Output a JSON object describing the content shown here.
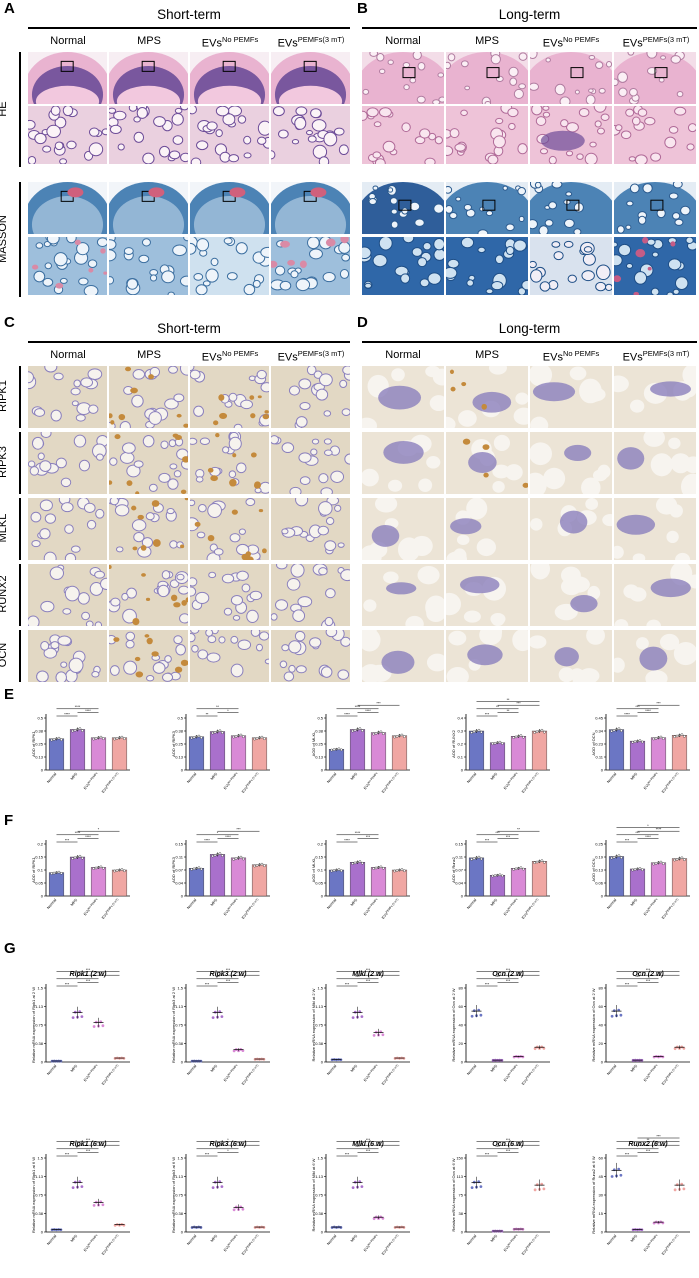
{
  "panels": {
    "A": {
      "letter": "A",
      "title": "Short-term",
      "columns": [
        "Normal",
        "MPS",
        "EVs",
        "EVs"
      ],
      "col_sup": [
        "",
        "",
        "No PEMFs",
        "PEMFs(3 mT)"
      ],
      "rows": [
        "HE",
        "MASSON"
      ]
    },
    "B": {
      "letter": "B",
      "title": "Long-term",
      "columns": [
        "Normal",
        "MPS",
        "EVs",
        "EVs"
      ],
      "col_sup": [
        "",
        "",
        "No PEMFs",
        "PEMFs(3 mT)"
      ]
    },
    "C": {
      "letter": "C",
      "title": "Short-term",
      "columns": [
        "Normal",
        "MPS",
        "EVs",
        "EVs"
      ],
      "col_sup": [
        "",
        "",
        "No PEMFs",
        "PEMFs(3 mT)"
      ],
      "rows": [
        "RIPK1",
        "RIPK3",
        "MLKL",
        "RUNX2",
        "OCN"
      ]
    },
    "D": {
      "letter": "D",
      "title": "Long-term",
      "columns": [
        "Normal",
        "MPS",
        "EVs",
        "EVs"
      ],
      "col_sup": [
        "",
        "",
        "No PEMFs",
        "PEMFs(3 mT)"
      ]
    },
    "E": {
      "letter": "E"
    },
    "F": {
      "letter": "F"
    },
    "G": {
      "letter": "G"
    }
  },
  "colors": {
    "normal": "#6b76c4",
    "mps": "#a970cc",
    "evs_no": "#d98ad6",
    "evs_pemf": "#f0a7a3",
    "he_pink": "#e9b3d0",
    "he_purple": "#6d4c98",
    "masson_blue": "#4c83b5",
    "ihc_bg": "#e2d8c4",
    "ihc_purple": "#8b80bd",
    "ihc_brown": "#c48a3c"
  },
  "chart_data": [
    {
      "panel": "E",
      "type": "bar",
      "ylabel": "AOD of RIPK1",
      "categories": [
        "Normal",
        "MPS",
        "EVsNo PEMFs",
        "EVsPEMFs (3 mT)"
      ],
      "values": [
        0.3,
        0.39,
        0.31,
        0.31
      ],
      "ylim": [
        0,
        0.5
      ],
      "sig": [
        "****",
        "****",
        "****"
      ]
    },
    {
      "panel": "E",
      "type": "bar",
      "ylabel": "AOD of RIPK3",
      "categories": [
        "Normal",
        "MPS",
        "EVsNo PEMFs",
        "EVsPEMFs (3 mT)"
      ],
      "values": [
        0.32,
        0.37,
        0.33,
        0.31
      ],
      "ylim": [
        0,
        0.5
      ],
      "sig": [
        "**",
        "*",
        "**"
      ]
    },
    {
      "panel": "E",
      "type": "bar",
      "ylabel": "AOD of MLKL",
      "categories": [
        "Normal",
        "MPS",
        "EVsNo PEMFs",
        "EVsPEMFs (3 mT)"
      ],
      "values": [
        0.2,
        0.39,
        0.36,
        0.33
      ],
      "ylim": [
        0,
        0.5
      ],
      "sig": [
        "****",
        "****",
        "****",
        "***"
      ]
    },
    {
      "panel": "E",
      "type": "bar",
      "ylabel": "AOD of RUNX2",
      "categories": [
        "Normal",
        "MPS",
        "EVsNo PEMFs",
        "EVsPEMFs (3 mT)"
      ],
      "values": [
        0.3,
        0.21,
        0.26,
        0.3
      ],
      "ylim": [
        0,
        0.4
      ],
      "sig": [
        "***",
        "**",
        "**",
        "***",
        "**"
      ]
    },
    {
      "panel": "E",
      "type": "bar",
      "ylabel": "AOD of OCN",
      "categories": [
        "Normal",
        "MPS",
        "EVsNo PEMFs",
        "EVsPEMFs (3 mT)"
      ],
      "values": [
        0.35,
        0.25,
        0.28,
        0.3
      ],
      "ylim": [
        0,
        0.45
      ],
      "sig": [
        "****",
        "****",
        "***",
        "***"
      ]
    },
    {
      "panel": "F",
      "type": "bar",
      "ylabel": "AOD of RIPK1",
      "categories": [
        "Normal",
        "MPS",
        "EVsNo PEMFs",
        "EVsPEMFs (3 mT)"
      ],
      "values": [
        0.09,
        0.15,
        0.11,
        0.1
      ],
      "ylim": [
        0,
        0.2
      ],
      "sig": [
        "***",
        "****",
        "****",
        "*"
      ]
    },
    {
      "panel": "F",
      "type": "bar",
      "ylabel": "AOD of RIPK3",
      "categories": [
        "Normal",
        "MPS",
        "EVsNo PEMFs",
        "EVsPEMFs (3 mT)"
      ],
      "values": [
        0.08,
        0.12,
        0.11,
        0.09
      ],
      "ylim": [
        0,
        0.15
      ],
      "sig": [
        "****",
        "****",
        "*",
        "***"
      ]
    },
    {
      "panel": "F",
      "type": "bar",
      "ylabel": "AOD of MLKL",
      "categories": [
        "Normal",
        "MPS",
        "EVsNo PEMFs",
        "EVsPEMFs (3 mT)"
      ],
      "values": [
        0.1,
        0.13,
        0.11,
        0.1
      ],
      "ylim": [
        0,
        0.2
      ],
      "sig": [
        "****",
        "***",
        "****"
      ]
    },
    {
      "panel": "F",
      "type": "bar",
      "ylabel": "AOD of Runx2",
      "categories": [
        "Normal",
        "MPS",
        "EVsNo PEMFs",
        "EVsPEMFs (3 mT)"
      ],
      "values": [
        0.11,
        0.06,
        0.08,
        0.1
      ],
      "ylim": [
        0,
        0.15
      ],
      "sig": [
        "***",
        "***",
        "***",
        "**"
      ]
    },
    {
      "panel": "F",
      "type": "bar",
      "ylabel": "AOD of OCN",
      "categories": [
        "Normal",
        "MPS",
        "EVsNo PEMFs",
        "EVsPEMFs (3 mT)"
      ],
      "values": [
        0.19,
        0.13,
        0.16,
        0.18
      ],
      "ylim": [
        0,
        0.25
      ],
      "sig": [
        "***",
        "****",
        "***",
        "****",
        "*"
      ]
    },
    {
      "panel": "G",
      "type": "scatter",
      "title": "Ripk1 (2 w)",
      "ylabel": "Relative mRNA expression of Ripk1 at 2 W",
      "categories": [
        "Normal",
        "MPS",
        "EVsNo PEMFs",
        "EVsPEMFs (3 mT)"
      ],
      "values": [
        0.02,
        1.0,
        0.8,
        0.08
      ],
      "ylim": [
        0,
        1.5
      ],
      "sig": [
        "***",
        "***",
        "*",
        "***",
        "***"
      ]
    },
    {
      "panel": "G",
      "type": "scatter",
      "title": "Ripk3 (2 w)",
      "ylabel": "Relative mRNA expression of Ripk3 at 2 W",
      "categories": [
        "Normal",
        "MPS",
        "EVsNo PEMFs",
        "EVsPEMFs (3 mT)"
      ],
      "values": [
        0.02,
        1.0,
        0.25,
        0.06
      ],
      "ylim": [
        0,
        1.5
      ],
      "sig": [
        "***",
        "***",
        "***",
        "**",
        "***"
      ]
    },
    {
      "panel": "G",
      "type": "scatter",
      "title": "Mlkl (2 w)",
      "ylabel": "Relative mRNA expression of Mlkl at 2 W",
      "categories": [
        "Normal",
        "MPS",
        "EVsNo PEMFs",
        "EVsPEMFs (3 mT)"
      ],
      "values": [
        0.05,
        1.0,
        0.6,
        0.08
      ],
      "ylim": [
        0,
        1.5
      ],
      "sig": [
        "***",
        "***",
        "***",
        "***",
        "***"
      ]
    },
    {
      "panel": "G",
      "type": "scatter",
      "title": "Ocn (2 w)",
      "ylabel": "Relative mRNA expression of Ocn at 2 W",
      "categories": [
        "Normal",
        "MPS",
        "EVsNo PEMFs",
        "EVsPEMFs (3 mT)"
      ],
      "values": [
        55,
        2,
        6,
        16
      ],
      "ylim": [
        0,
        80
      ],
      "sig": [
        "***",
        "***",
        "***",
        "***",
        "***"
      ]
    },
    {
      "panel": "G",
      "type": "scatter",
      "title": "Ocn (2 w)",
      "ylabel": "Relative mRNA expression of Ocn at 2 W",
      "categories": [
        "Normal",
        "MPS",
        "EVsNo PEMFs",
        "EVsPEMFs (3 mT)"
      ],
      "values": [
        55,
        2,
        6,
        16
      ],
      "ylim": [
        0,
        80
      ],
      "sig": [
        "***",
        "***",
        "***",
        "***",
        "***"
      ]
    },
    {
      "panel": "G",
      "type": "scatter",
      "title": "Ripk1 (6 w)",
      "ylabel": "Relative mRNA expression of Ripk1 at 6 W",
      "categories": [
        "Normal",
        "MPS",
        "EVsNo PEMFs",
        "EVsPEMFs (3 mT)"
      ],
      "values": [
        0.05,
        1.0,
        0.6,
        0.15
      ],
      "ylim": [
        0,
        1.5
      ],
      "sig": [
        "***",
        "***",
        "***",
        "***",
        "***"
      ]
    },
    {
      "panel": "G",
      "type": "scatter",
      "title": "Ripk3 (6 w)",
      "ylabel": "Relative mRNA expression of Ripk3 at 6 W",
      "categories": [
        "Normal",
        "MPS",
        "EVsNo PEMFs",
        "EVsPEMFs (3 mT)"
      ],
      "values": [
        0.1,
        1.0,
        0.5,
        0.1
      ],
      "ylim": [
        0,
        1.5
      ],
      "sig": [
        "***",
        "*",
        "***",
        "***",
        "*"
      ]
    },
    {
      "panel": "G",
      "type": "scatter",
      "title": "Mlkl (6 w)",
      "ylabel": "Relative mRNA expression of Mlkl at 6 W",
      "categories": [
        "Normal",
        "MPS",
        "EVsNo PEMFs",
        "EVsPEMFs (3 mT)"
      ],
      "values": [
        0.1,
        1.0,
        0.3,
        0.1
      ],
      "ylim": [
        0,
        1.5
      ],
      "sig": [
        "***",
        "***",
        "***",
        "***",
        "***"
      ]
    },
    {
      "panel": "G",
      "type": "scatter",
      "title": "Ocn (6 w)",
      "ylabel": "Relative mRNA expression of Ocn at 6 W",
      "categories": [
        "Normal",
        "MPS",
        "EVsNo PEMFs",
        "EVsPEMFs (3 mT)"
      ],
      "values": [
        100,
        2,
        6,
        95
      ],
      "ylim": [
        0,
        150
      ],
      "sig": [
        "***",
        "***",
        "***",
        "***",
        "***"
      ]
    },
    {
      "panel": "G",
      "type": "scatter",
      "title": "Runx2 (6 w)",
      "ylabel": "Relative mRNA expression of Runx2 at 6 W",
      "categories": [
        "Normal",
        "MPS",
        "EVsNo PEMFs",
        "EVsPEMFs (3 mT)"
      ],
      "values": [
        50,
        2,
        8,
        38
      ],
      "ylim": [
        0,
        60
      ],
      "sig": [
        "***",
        "***",
        "*",
        "***",
        "**",
        "***"
      ]
    }
  ]
}
